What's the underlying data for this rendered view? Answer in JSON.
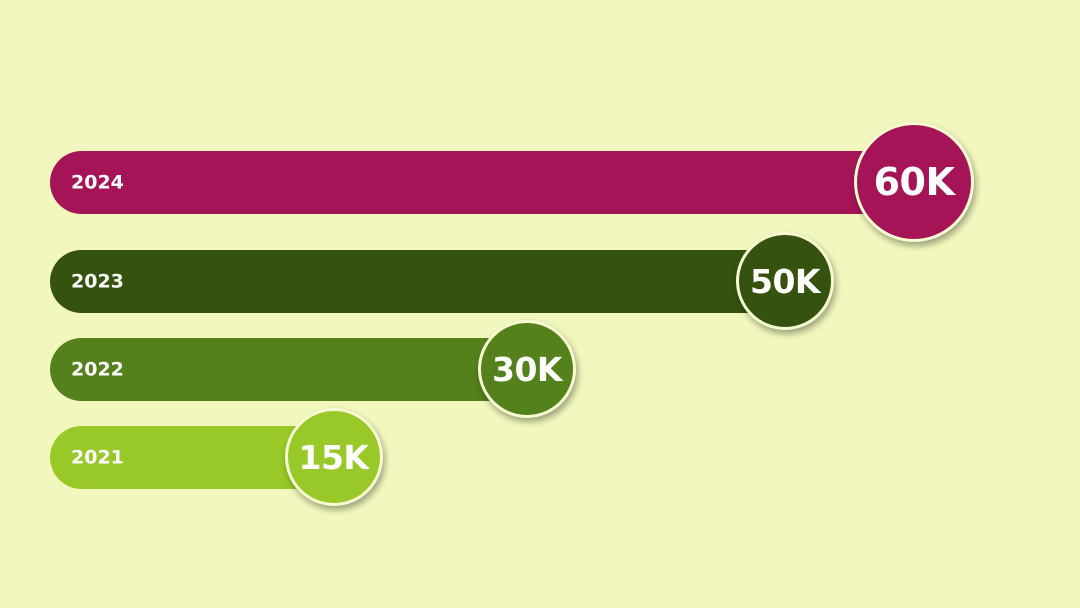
{
  "chart_data": {
    "type": "bar",
    "orientation": "horizontal",
    "background": "#f2f8bd",
    "title": "",
    "xlabel": "",
    "ylabel": "",
    "grid": false,
    "categories": [
      "2024",
      "2023",
      "2022",
      "2021"
    ],
    "values": [
      60,
      50,
      30,
      15
    ],
    "value_labels": [
      "60K",
      "50K",
      "30K",
      "15K"
    ],
    "unit": "K",
    "colors": [
      "#a61458",
      "#35530e",
      "#54811c",
      "#99c928"
    ]
  }
}
